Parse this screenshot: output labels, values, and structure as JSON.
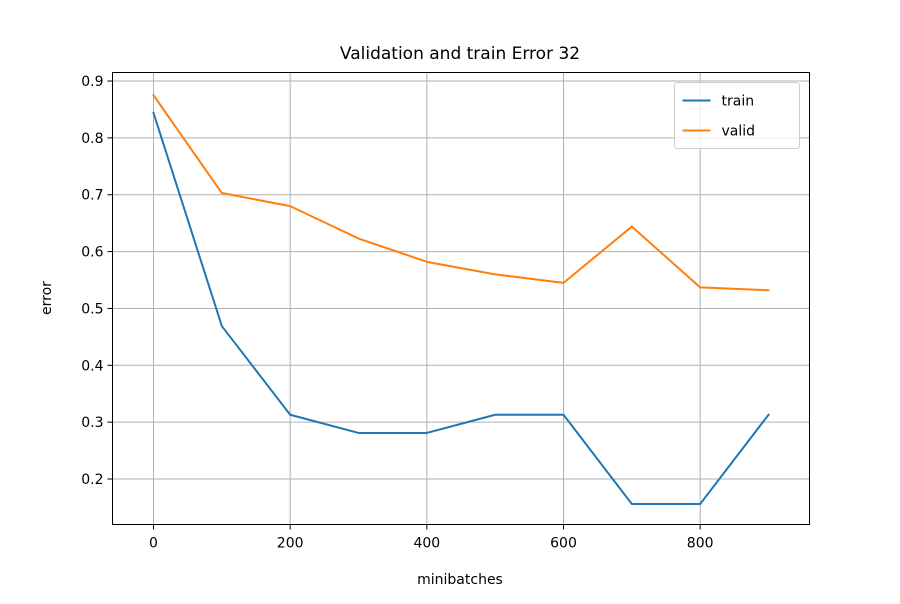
{
  "chart_data": {
    "type": "line",
    "title": "Validation and train Error 32",
    "xlabel": "minibatches",
    "ylabel": "error",
    "x": [
      0,
      100,
      200,
      300,
      400,
      500,
      600,
      700,
      800,
      900
    ],
    "series": [
      {
        "name": "train",
        "color": "#1f77b4",
        "values": [
          0.844,
          0.469,
          0.313,
          0.281,
          0.281,
          0.313,
          0.313,
          0.156,
          0.156,
          0.313
        ]
      },
      {
        "name": "valid",
        "color": "#ff7f0e",
        "values": [
          0.875,
          0.703,
          0.68,
          0.623,
          0.582,
          0.56,
          0.545,
          0.644,
          0.537,
          0.532
        ]
      }
    ],
    "xlim": [
      -60,
      960
    ],
    "ylim": [
      0.12,
      0.915
    ],
    "xticks": [
      0,
      200,
      400,
      600,
      800
    ],
    "yticks": [
      0.2,
      0.3,
      0.4,
      0.5,
      0.6,
      0.7,
      0.8,
      0.9
    ],
    "grid": true,
    "legend_position": "top-right"
  }
}
